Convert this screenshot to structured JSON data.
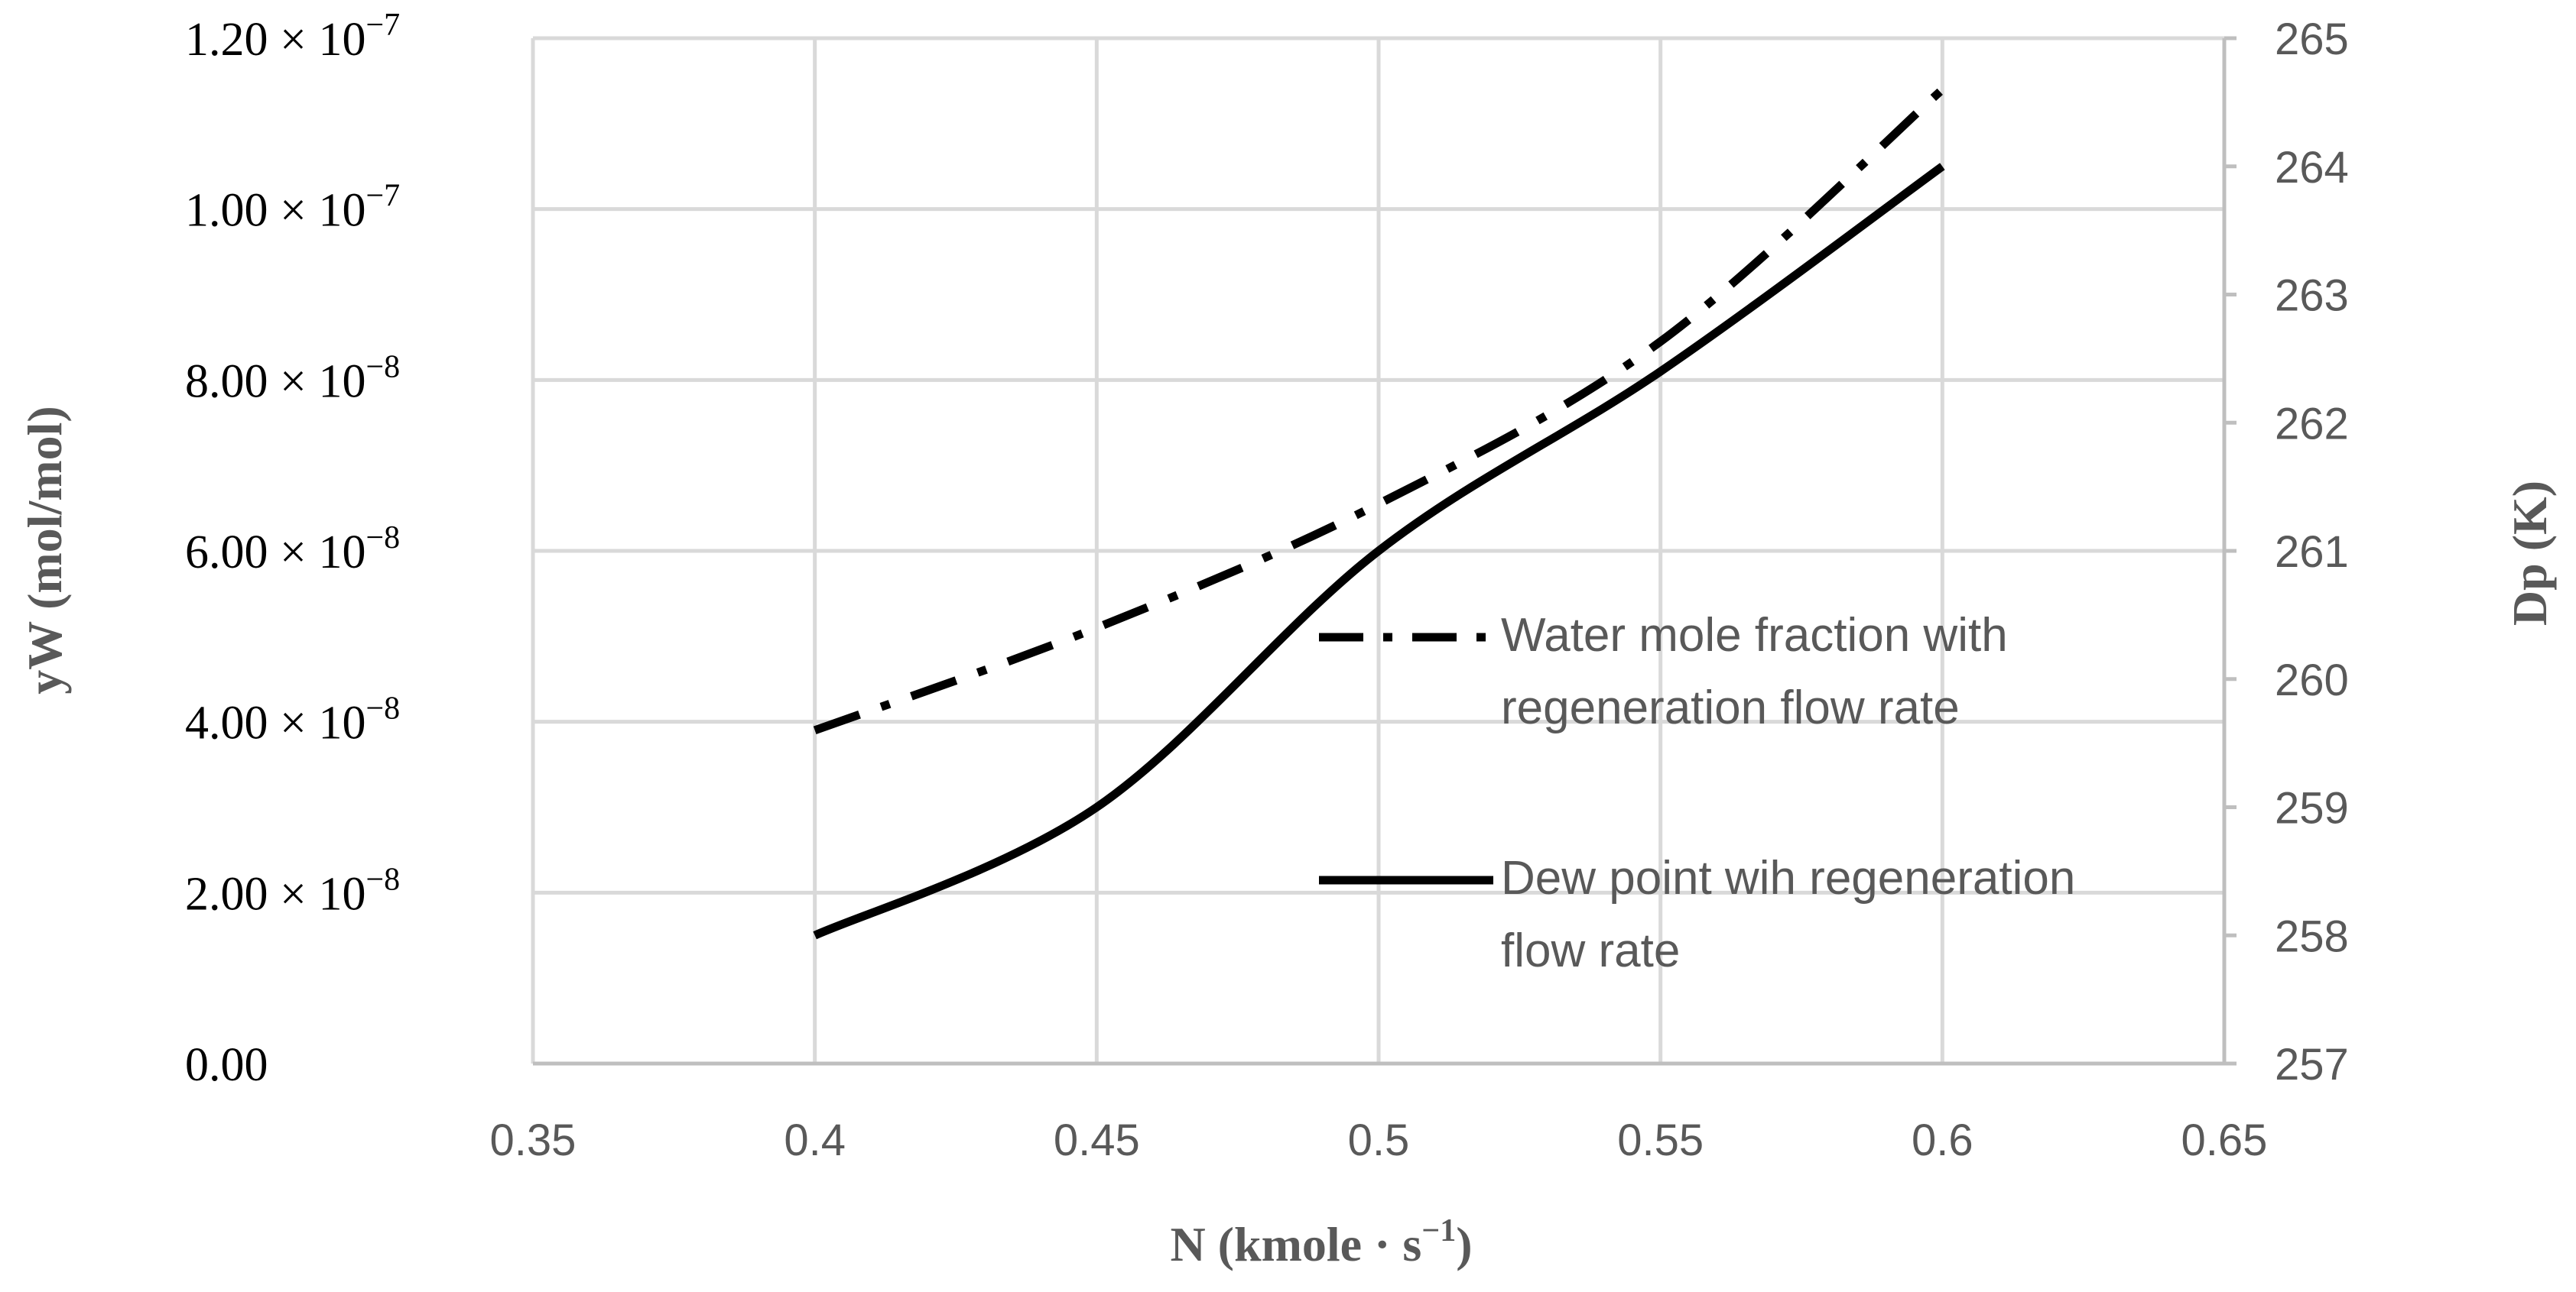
{
  "chart_data": {
    "type": "line",
    "x": [
      0.4,
      0.45,
      0.5,
      0.55,
      0.6
    ],
    "xlabel_main": "N (kmole · s",
    "xlabel_sup": "−1",
    "xlabel_close": ")",
    "xlim": [
      0.35,
      0.65
    ],
    "xticks": [
      "0.35",
      "0.4",
      "0.45",
      "0.5",
      "0.55",
      "0.6",
      "0.65"
    ],
    "ylabel_left": "yW (mol/mol)",
    "ylim_left": [
      0,
      1.2e-07
    ],
    "yticks_left": [
      {
        "mant": "0.00",
        "exp": ""
      },
      {
        "mant": "2.00 × 10",
        "exp": "−8"
      },
      {
        "mant": "4.00 × 10",
        "exp": "−8"
      },
      {
        "mant": "6.00 × 10",
        "exp": "−8"
      },
      {
        "mant": "8.00 × 10",
        "exp": "−8"
      },
      {
        "mant": "1.00 × 10",
        "exp": "−7"
      },
      {
        "mant": "1.20 × 10",
        "exp": "−7"
      }
    ],
    "ylabel_right": "Dp (K)",
    "ylim_right": [
      257,
      265
    ],
    "yticks_right": [
      "257",
      "258",
      "259",
      "260",
      "261",
      "262",
      "263",
      "264",
      "265"
    ],
    "grid": true,
    "series": [
      {
        "name": "Water mole fraction with regeneration flow rate",
        "legend_lines": [
          "Water mole fraction with",
          "regeneration flow rate"
        ],
        "axis": "left",
        "style": "dashdot",
        "values": [
          3.9e-08,
          5.1e-08,
          6.55e-08,
          8.45e-08,
          1.14e-07
        ]
      },
      {
        "name": "Dew point wih regeneration flow rate",
        "legend_lines": [
          "Dew point wih regeneration",
          "flow rate"
        ],
        "axis": "right",
        "style": "solid",
        "values": [
          258.0,
          259.0,
          261.0,
          262.4,
          264.0
        ]
      }
    ],
    "legend_position": "center-right"
  }
}
